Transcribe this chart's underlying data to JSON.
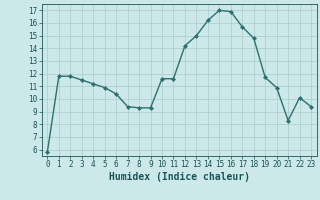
{
  "x": [
    0,
    1,
    2,
    3,
    4,
    5,
    6,
    7,
    8,
    9,
    10,
    11,
    12,
    13,
    14,
    15,
    16,
    17,
    18,
    19,
    20,
    21,
    22,
    23
  ],
  "y": [
    5.8,
    11.8,
    11.8,
    11.5,
    11.2,
    10.9,
    10.4,
    9.4,
    9.3,
    9.3,
    11.6,
    11.6,
    14.2,
    15.0,
    16.2,
    17.0,
    16.9,
    15.7,
    14.8,
    11.7,
    10.9,
    8.3,
    10.1,
    9.4
  ],
  "line_color": "#2e7070",
  "marker": "D",
  "markersize": 2.0,
  "linewidth": 1.0,
  "xlabel": "Humidex (Indice chaleur)",
  "ylim": [
    5.5,
    17.5
  ],
  "xlim": [
    -0.5,
    23.5
  ],
  "yticks": [
    6,
    7,
    8,
    9,
    10,
    11,
    12,
    13,
    14,
    15,
    16,
    17
  ],
  "xticks": [
    0,
    1,
    2,
    3,
    4,
    5,
    6,
    7,
    8,
    9,
    10,
    11,
    12,
    13,
    14,
    15,
    16,
    17,
    18,
    19,
    20,
    21,
    22,
    23
  ],
  "bg_color": "#cce8e8",
  "grid_color": "#aacccc",
  "tick_color": "#1a5555",
  "label_color": "#1a5555",
  "tick_fontsize": 5.5,
  "xlabel_fontsize": 7.0
}
